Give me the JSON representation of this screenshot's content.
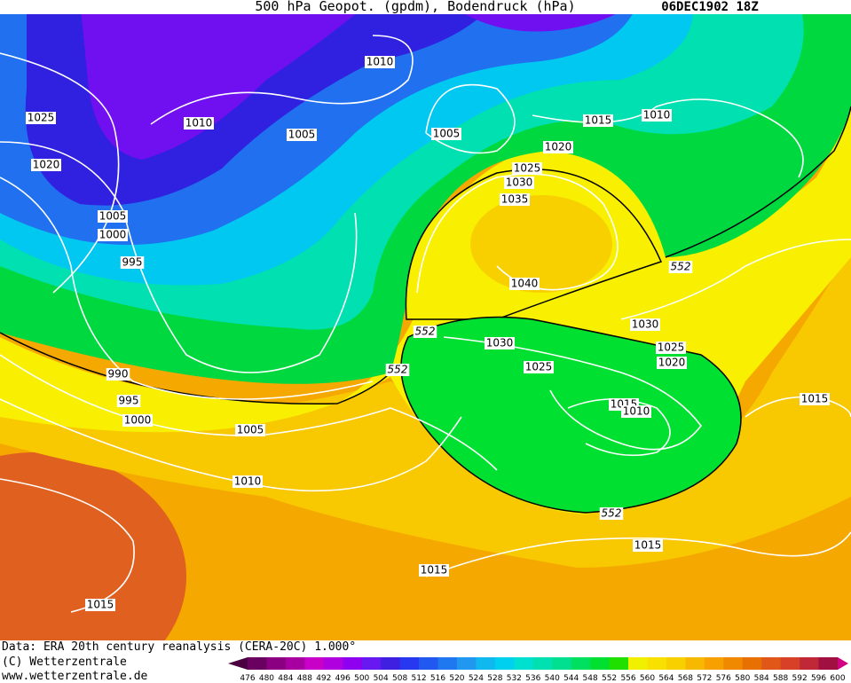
{
  "header": {
    "title": "500 hPa Geopot. (gpdm), Bodendruck (hPa)",
    "date": "06DEC1902 18Z"
  },
  "map": {
    "isobar_labels": [
      1010,
      1025,
      1010,
      1005,
      1005,
      1015,
      1010,
      1020,
      1020,
      1025,
      1030,
      1035,
      1005,
      1000,
      995,
      552,
      1040,
      552,
      1030,
      1030,
      1025,
      1020,
      1025,
      552,
      990,
      995,
      1015,
      1015,
      1010,
      1000,
      1005,
      1010,
      552,
      1015,
      1015,
      1015
    ]
  },
  "footer": {
    "source": "Data: ERA 20th century reanalysis (CERA-20C) 1.000°",
    "copyright": "(C) Wetterzentrale",
    "url": "www.wetterzentrale.de"
  },
  "colorbar": {
    "labels": [
      476,
      480,
      484,
      488,
      492,
      496,
      500,
      504,
      508,
      512,
      516,
      520,
      524,
      528,
      532,
      536,
      540,
      544,
      548,
      552,
      556,
      560,
      564,
      568,
      572,
      576,
      580,
      584,
      588,
      592,
      596,
      600
    ],
    "colors": [
      "#4a0040",
      "#6a0060",
      "#8a0080",
      "#a800a0",
      "#c800c8",
      "#b000e0",
      "#9000f0",
      "#6818f0",
      "#4020e0",
      "#2838f0",
      "#2058f0",
      "#2078f0",
      "#2098f0",
      "#10b8f0",
      "#00d0f0",
      "#00e0d0",
      "#00e0b0",
      "#00e090",
      "#00e060",
      "#00e030",
      "#20e000",
      "#f0f000",
      "#f8e000",
      "#f8d000",
      "#f8b800",
      "#f8a000",
      "#f08800",
      "#e87000",
      "#e05818",
      "#d84028",
      "#c02838",
      "#a01040",
      "#d00080"
    ]
  }
}
